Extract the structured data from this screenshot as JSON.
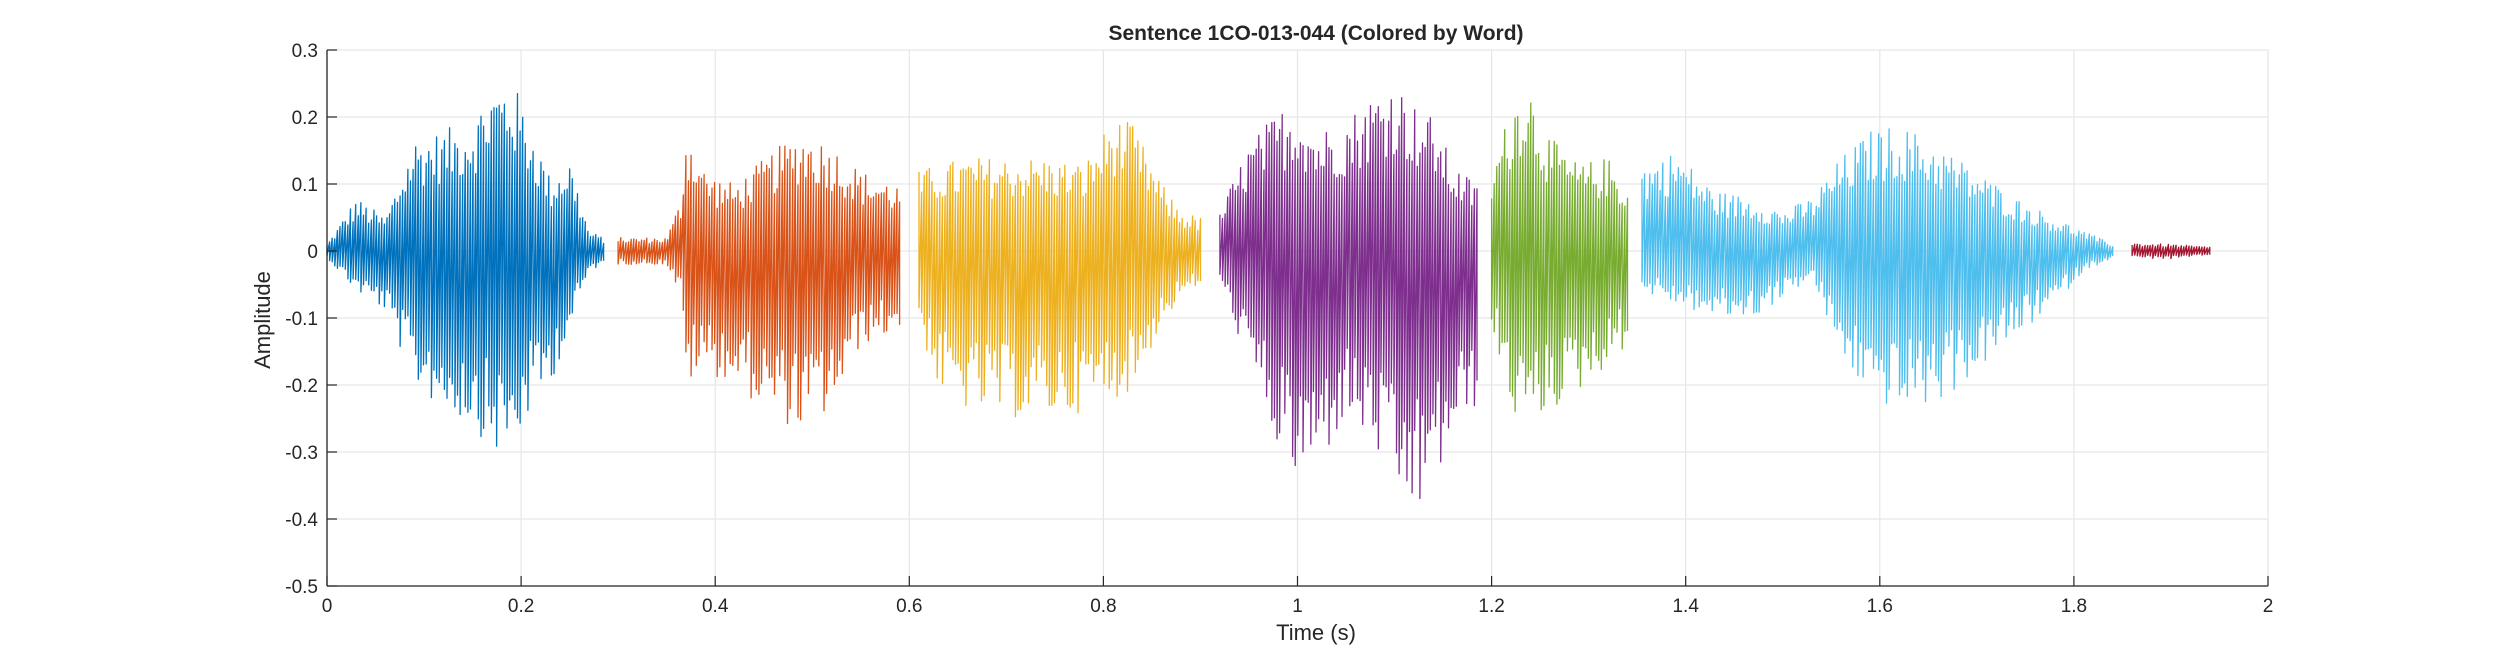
{
  "chart_data": {
    "type": "line",
    "title": "Sentence 1CO-013-044 (Colored by Word)",
    "xlabel": "Time (s)",
    "ylabel": "Amplitude",
    "xlim": [
      0,
      2
    ],
    "ylim": [
      -0.5,
      0.3
    ],
    "xticks": [
      0,
      0.2,
      0.4,
      0.6,
      0.8,
      1,
      1.2,
      1.4,
      1.6,
      1.8,
      2
    ],
    "xtick_labels": [
      "0",
      "0.2",
      "0.4",
      "0.6",
      "0.8",
      "1",
      "1.2",
      "1.4",
      "1.6",
      "1.8",
      "2"
    ],
    "yticks": [
      -0.5,
      -0.4,
      -0.3,
      -0.2,
      -0.1,
      0,
      0.1,
      0.2,
      0.3
    ],
    "ytick_labels": [
      "-0.5",
      "-0.4",
      "-0.3",
      "-0.2",
      "-0.1",
      "0",
      "0.1",
      "0.2",
      "0.3"
    ],
    "grid": true,
    "legend": false,
    "series": [
      {
        "color": "#0072BD",
        "x_range": [
          0.0,
          0.285
        ],
        "envelope": [
          [
            0.0,
            0.01,
            -0.01
          ],
          [
            0.03,
            0.08,
            -0.06
          ],
          [
            0.06,
            0.05,
            -0.09
          ],
          [
            0.09,
            0.17,
            -0.2
          ],
          [
            0.12,
            0.18,
            -0.24
          ],
          [
            0.15,
            0.2,
            -0.26
          ],
          [
            0.17,
            0.25,
            -0.3
          ],
          [
            0.19,
            0.26,
            -0.31
          ],
          [
            0.21,
            0.19,
            -0.24
          ],
          [
            0.23,
            0.11,
            -0.2
          ],
          [
            0.25,
            0.14,
            -0.12
          ],
          [
            0.27,
            0.03,
            -0.03
          ],
          [
            0.285,
            0.02,
            -0.02
          ]
        ]
      },
      {
        "color": "#D95319",
        "x_range": [
          0.3,
          0.59
        ],
        "envelope": [
          [
            0.3,
            0.02,
            -0.02
          ],
          [
            0.35,
            0.02,
            -0.02
          ],
          [
            0.365,
            0.08,
            -0.07
          ],
          [
            0.37,
            0.19,
            -0.2
          ],
          [
            0.39,
            0.12,
            -0.18
          ],
          [
            0.42,
            0.1,
            -0.2
          ],
          [
            0.46,
            0.15,
            -0.25
          ],
          [
            0.49,
            0.18,
            -0.27
          ],
          [
            0.52,
            0.16,
            -0.24
          ],
          [
            0.55,
            0.12,
            -0.14
          ],
          [
            0.57,
            0.11,
            -0.13
          ],
          [
            0.59,
            0.1,
            -0.12
          ]
        ]
      },
      {
        "color": "#EDB120",
        "x_range": [
          0.61,
          0.9
        ],
        "envelope": [
          [
            0.61,
            0.12,
            -0.11
          ],
          [
            0.63,
            0.13,
            -0.21
          ],
          [
            0.66,
            0.14,
            -0.24
          ],
          [
            0.7,
            0.14,
            -0.25
          ],
          [
            0.74,
            0.14,
            -0.25
          ],
          [
            0.78,
            0.13,
            -0.24
          ],
          [
            0.81,
            0.2,
            -0.22
          ],
          [
            0.83,
            0.19,
            -0.21
          ],
          [
            0.86,
            0.1,
            -0.11
          ],
          [
            0.88,
            0.06,
            -0.07
          ],
          [
            0.9,
            0.05,
            -0.05
          ]
        ]
      },
      {
        "color": "#7E2F8E",
        "x_range": [
          0.92,
          1.185
        ],
        "envelope": [
          [
            0.92,
            0.06,
            -0.05
          ],
          [
            0.95,
            0.16,
            -0.17
          ],
          [
            0.98,
            0.21,
            -0.3
          ],
          [
            1.0,
            0.23,
            -0.35
          ],
          [
            1.02,
            0.18,
            -0.33
          ],
          [
            1.05,
            0.2,
            -0.25
          ],
          [
            1.08,
            0.24,
            -0.3
          ],
          [
            1.1,
            0.26,
            -0.37
          ],
          [
            1.12,
            0.22,
            -0.4
          ],
          [
            1.14,
            0.2,
            -0.36
          ],
          [
            1.16,
            0.13,
            -0.28
          ],
          [
            1.185,
            0.1,
            -0.23
          ]
        ]
      },
      {
        "color": "#77AC30",
        "x_range": [
          1.2,
          1.34
        ],
        "envelope": [
          [
            1.2,
            0.12,
            -0.12
          ],
          [
            1.22,
            0.22,
            -0.24
          ],
          [
            1.235,
            0.27,
            -0.27
          ],
          [
            1.26,
            0.17,
            -0.24
          ],
          [
            1.29,
            0.13,
            -0.21
          ],
          [
            1.32,
            0.14,
            -0.17
          ],
          [
            1.34,
            0.1,
            -0.14
          ]
        ]
      },
      {
        "color": "#4DBEEE",
        "x_range": [
          1.355,
          1.84
        ],
        "envelope": [
          [
            1.355,
            0.13,
            -0.06
          ],
          [
            1.39,
            0.15,
            -0.08
          ],
          [
            1.43,
            0.09,
            -0.1
          ],
          [
            1.47,
            0.08,
            -0.1
          ],
          [
            1.5,
            0.06,
            -0.07
          ],
          [
            1.53,
            0.08,
            -0.04
          ],
          [
            1.56,
            0.14,
            -0.16
          ],
          [
            1.59,
            0.18,
            -0.22
          ],
          [
            1.62,
            0.19,
            -0.24
          ],
          [
            1.66,
            0.16,
            -0.23
          ],
          [
            1.7,
            0.12,
            -0.18
          ],
          [
            1.74,
            0.08,
            -0.13
          ],
          [
            1.78,
            0.05,
            -0.08
          ],
          [
            1.81,
            0.03,
            -0.03
          ],
          [
            1.84,
            0.01,
            -0.01
          ]
        ]
      },
      {
        "color": "#A2142F",
        "x_range": [
          1.86,
          1.94
        ],
        "envelope": [
          [
            1.86,
            0.012,
            -0.01
          ],
          [
            1.9,
            0.01,
            -0.012
          ],
          [
            1.94,
            0.006,
            -0.006
          ]
        ]
      }
    ]
  }
}
